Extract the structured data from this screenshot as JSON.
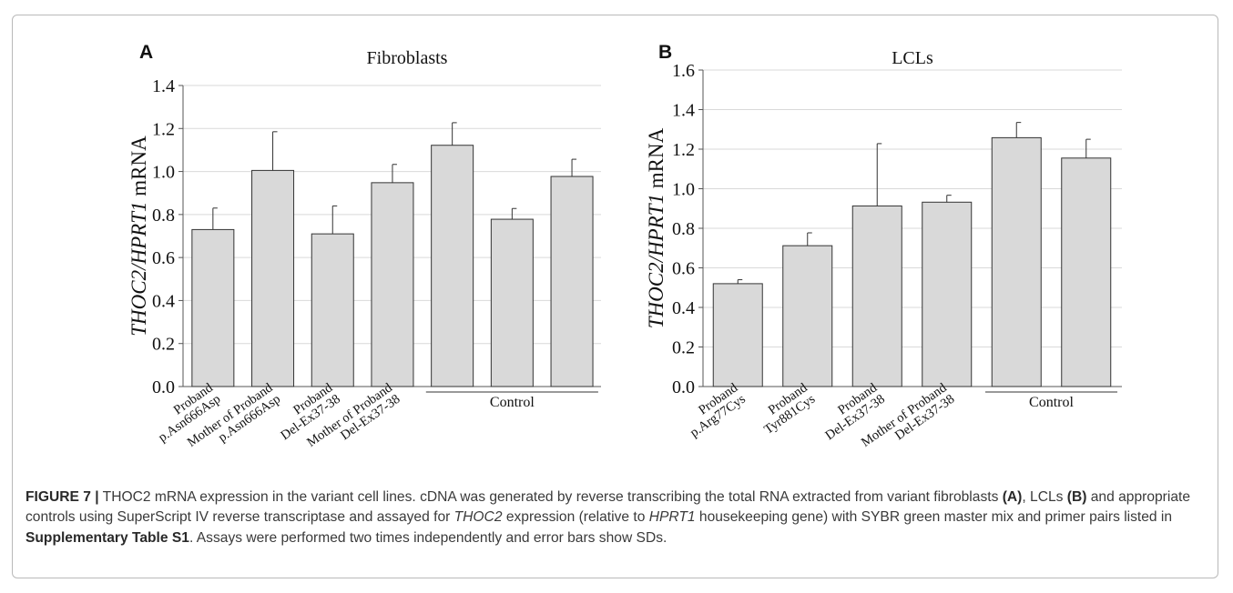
{
  "chart_data": [
    {
      "type": "bar",
      "panel_letter": "A",
      "title": "Fibroblasts",
      "ylabel_parts": [
        "THOC2/HPRT1",
        " mRNA"
      ],
      "ylim": [
        0,
        1.4
      ],
      "yticks": [
        "0.0",
        "0.2",
        "0.4",
        "0.6",
        "0.8",
        "1.0",
        "1.2",
        "1.4"
      ],
      "grid": true,
      "categories": [
        [
          "Proband",
          "p.Asn666Asp"
        ],
        [
          "Mother of Proband",
          "p.Asn666Asp"
        ],
        [
          "Proband",
          "Del-Ex37-38"
        ],
        [
          "Mother of Proband",
          "Del-Ex37-38"
        ],
        [],
        [],
        []
      ],
      "values": [
        0.73,
        1.005,
        0.71,
        0.948,
        1.122,
        0.778,
        0.977
      ],
      "errors": [
        0.1,
        0.18,
        0.13,
        0.085,
        0.105,
        0.05,
        0.08
      ],
      "group_label": "Control",
      "group_start_index": 4
    },
    {
      "type": "bar",
      "panel_letter": "B",
      "title": "LCLs",
      "ylabel_parts": [
        "THOC2/HPRT1",
        " mRNA"
      ],
      "ylim": [
        0,
        1.6
      ],
      "yticks": [
        "0.0",
        "0.2",
        "0.4",
        "0.6",
        "0.8",
        "1.0",
        "1.2",
        "1.4",
        "1.6"
      ],
      "grid": true,
      "categories": [
        [
          "Proband",
          "p.Arg77Cys"
        ],
        [
          "Proband",
          "Tyr881Cys"
        ],
        [
          "Proband",
          "Del-Ex37-38"
        ],
        [
          "Mother of Proband",
          "Del-Ex37-38"
        ],
        [],
        []
      ],
      "values": [
        0.52,
        0.712,
        0.913,
        0.932,
        1.258,
        1.155
      ],
      "errors": [
        0.02,
        0.065,
        0.315,
        0.035,
        0.077,
        0.095
      ],
      "group_label": "Control",
      "group_start_index": 4
    }
  ],
  "caption": {
    "figure_label": "FIGURE 7 |",
    "parts": [
      {
        "t": " THOC2 mRNA expression in the variant cell lines. cDNA was generated by reverse transcribing the total RNA extracted from variant fibroblasts ",
        "s": "n"
      },
      {
        "t": "(A)",
        "s": "b"
      },
      {
        "t": ", LCLs ",
        "s": "n"
      },
      {
        "t": "(B)",
        "s": "b"
      },
      {
        "t": " and appropriate controls using SuperScript IV reverse transcriptase and assayed for ",
        "s": "n"
      },
      {
        "t": "THOC2",
        "s": "i"
      },
      {
        "t": " expression (relative to ",
        "s": "n"
      },
      {
        "t": "HPRT1",
        "s": "i"
      },
      {
        "t": " housekeeping gene) with SYBR green master mix and primer pairs listed in ",
        "s": "n"
      },
      {
        "t": "Supplementary Table S1",
        "s": "b"
      },
      {
        "t": ". Assays were performed two times independently and error bars show SDs.",
        "s": "n"
      }
    ]
  }
}
